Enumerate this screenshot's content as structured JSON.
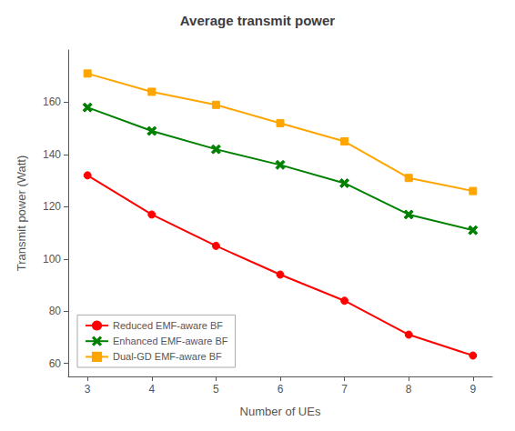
{
  "chart_data": {
    "type": "line",
    "title": "Average transmit power",
    "xlabel": "Number of UEs",
    "ylabel": "Transmit power (Watt)",
    "x": [
      3,
      4,
      5,
      6,
      7,
      8,
      9
    ],
    "series": [
      {
        "name": "Reduced EMF-aware BF",
        "color": "#ff0000",
        "marker": "circle",
        "values": [
          132,
          117,
          105,
          94,
          84,
          71,
          63
        ]
      },
      {
        "name": "Enhanced EMF-aware BF",
        "color": "#008000",
        "marker": "x",
        "values": [
          158,
          149,
          142,
          136,
          129,
          117,
          111
        ]
      },
      {
        "name": "Dual-GD EMF-aware BF",
        "color": "#ffa500",
        "marker": "square",
        "values": [
          171,
          164,
          159,
          152,
          145,
          131,
          126
        ]
      }
    ],
    "xlim": [
      2.7,
      9.3
    ],
    "xticks": [
      3,
      4,
      5,
      6,
      7,
      8,
      9
    ],
    "ylim": [
      55,
      180
    ],
    "yticks": [
      60,
      80,
      100,
      120,
      140,
      160
    ],
    "grid": false,
    "legend": "lower left"
  }
}
